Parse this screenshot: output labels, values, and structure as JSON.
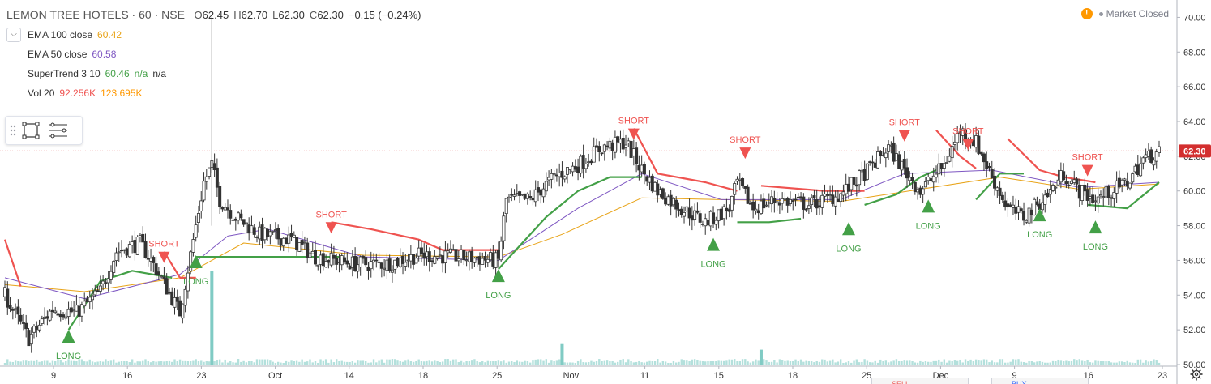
{
  "header": {
    "symbol": "LEMON TREE HOTELS · 60 · NSE",
    "ohlc": [
      {
        "k": "O",
        "v": "62.45"
      },
      {
        "k": "H",
        "v": "62.70"
      },
      {
        "k": "L",
        "v": "62.30"
      },
      {
        "k": "C",
        "v": "62.30"
      },
      {
        "k": "",
        "v": "−0.15 (−0.24%)"
      }
    ]
  },
  "indicators": [
    {
      "name": "EMA 100 close",
      "values": [
        "60.42"
      ],
      "colors": [
        "#e8a317"
      ]
    },
    {
      "name": "EMA 50 close",
      "values": [
        "60.58"
      ],
      "colors": [
        "#7e57c2"
      ]
    },
    {
      "name": "SuperTrend 3 10",
      "values": [
        "60.46",
        "n/a",
        "n/a"
      ],
      "colors": [
        "#43a047",
        "#43a047",
        "#333333"
      ]
    },
    {
      "name": "Vol 20",
      "values": [
        "92.256K",
        "123.695K"
      ],
      "colors": [
        "#ef5350",
        "#ff9800"
      ]
    }
  ],
  "status": {
    "warn_glyph": "!",
    "market": "Market Closed"
  },
  "colors": {
    "up": "#26a69a",
    "down": "#ef5350",
    "candle": "#333333",
    "ema100": "#e8a317",
    "ema50": "#7e57c2",
    "supertrend_up": "#43a047",
    "supertrend_down": "#ef5350",
    "last_price_line": "#d32f2f",
    "volume": "#80cbc4"
  },
  "chart_data": {
    "type": "candlestick",
    "title": "LEMON TREE HOTELS · 60 · NSE",
    "y_axis": {
      "range": [
        50,
        71
      ],
      "ticks": [
        "50.00",
        "52.00",
        "54.00",
        "56.00",
        "58.00",
        "60.00",
        "62.00",
        "64.00",
        "66.00",
        "68.00",
        "70.00"
      ],
      "position": "right"
    },
    "x_axis": {
      "ticks": [
        "9",
        "16",
        "23",
        "Oct",
        "14",
        "18",
        "25",
        "Nov",
        "11",
        "15",
        "18",
        "25",
        "Dec",
        "9",
        "16",
        "23"
      ]
    },
    "last_price": {
      "value": 62.3,
      "label": "62.30"
    },
    "price_path": [
      [
        0,
        54.0
      ],
      [
        3,
        51.5
      ],
      [
        6,
        53.2
      ],
      [
        9,
        53.0
      ],
      [
        12,
        54.2
      ],
      [
        14,
        56.5
      ],
      [
        17,
        57.0
      ],
      [
        19,
        55.5
      ],
      [
        22,
        53.0
      ],
      [
        25,
        60.5
      ],
      [
        26,
        61.5
      ],
      [
        27,
        59.5
      ],
      [
        29,
        58.5
      ],
      [
        32,
        57.5
      ],
      [
        36,
        57.2
      ],
      [
        39,
        56.2
      ],
      [
        44,
        55.8
      ],
      [
        48,
        55.8
      ],
      [
        52,
        56.3
      ],
      [
        57,
        56.2
      ],
      [
        62,
        56.0
      ],
      [
        63,
        59.5
      ],
      [
        66,
        59.5
      ],
      [
        69,
        60.8
      ],
      [
        72,
        61.5
      ],
      [
        75,
        62.5
      ],
      [
        78,
        62.8
      ],
      [
        80,
        61.2
      ],
      [
        82,
        60.0
      ],
      [
        85,
        59.0
      ],
      [
        88,
        58.2
      ],
      [
        91,
        59.0
      ],
      [
        92,
        60.5
      ],
      [
        94,
        59.0
      ],
      [
        97,
        59.5
      ],
      [
        101,
        59.2
      ],
      [
        105,
        59.8
      ],
      [
        108,
        61.0
      ],
      [
        111,
        62.5
      ],
      [
        113,
        61.2
      ],
      [
        115,
        60.0
      ],
      [
        118,
        61.5
      ],
      [
        120,
        63.5
      ],
      [
        122,
        62.8
      ],
      [
        124,
        60.8
      ],
      [
        126,
        59.0
      ],
      [
        128,
        58.5
      ],
      [
        131,
        59.8
      ],
      [
        133,
        61.0
      ],
      [
        135,
        60.0
      ],
      [
        137,
        59.5
      ],
      [
        139,
        60.0
      ],
      [
        141,
        60.5
      ],
      [
        143,
        61.8
      ],
      [
        145,
        62.3
      ]
    ],
    "series": [
      {
        "name": "EMA 100 close",
        "points": [
          [
            0,
            54.6
          ],
          [
            10,
            54.2
          ],
          [
            22,
            55.0
          ],
          [
            30,
            57.0
          ],
          [
            45,
            56.3
          ],
          [
            62,
            56.2
          ],
          [
            70,
            57.5
          ],
          [
            80,
            59.6
          ],
          [
            90,
            59.5
          ],
          [
            105,
            59.4
          ],
          [
            115,
            60.1
          ],
          [
            125,
            60.8
          ],
          [
            135,
            60.1
          ],
          [
            145,
            60.4
          ]
        ]
      },
      {
        "name": "EMA 50 close",
        "points": [
          [
            0,
            55.0
          ],
          [
            10,
            53.8
          ],
          [
            22,
            55.2
          ],
          [
            28,
            57.4
          ],
          [
            33,
            57.8
          ],
          [
            45,
            56.2
          ],
          [
            62,
            56.0
          ],
          [
            72,
            59.0
          ],
          [
            80,
            61.0
          ],
          [
            90,
            59.5
          ],
          [
            105,
            59.5
          ],
          [
            113,
            61.0
          ],
          [
            124,
            61.2
          ],
          [
            135,
            60.2
          ],
          [
            145,
            60.5
          ]
        ]
      },
      {
        "name": "SuperTrend 3 10",
        "segments": [
          {
            "trend": "down",
            "points": [
              [
                0,
                57.2
              ],
              [
                2,
                54.5
              ]
            ]
          },
          {
            "trend": "up",
            "points": [
              [
                8,
                52.0
              ],
              [
                12,
                54.8
              ],
              [
                16,
                55.4
              ],
              [
                21,
                55.0
              ]
            ]
          },
          {
            "trend": "down",
            "points": [
              [
                20,
                56.5
              ],
              [
                22,
                55.0
              ],
              [
                24,
                55.0
              ]
            ]
          },
          {
            "trend": "up",
            "points": [
              [
                24,
                56.2
              ],
              [
                35,
                56.2
              ],
              [
                42,
                56.2
              ]
            ]
          },
          {
            "trend": "down",
            "points": [
              [
                41,
                58.2
              ],
              [
                46,
                57.8
              ],
              [
                52,
                57.2
              ],
              [
                55,
                56.6
              ],
              [
                62,
                56.6
              ]
            ]
          },
          {
            "trend": "up",
            "points": [
              [
                62,
                55.5
              ],
              [
                64,
                56.5
              ],
              [
                68,
                58.5
              ],
              [
                72,
                60.0
              ],
              [
                76,
                60.8
              ],
              [
                80,
                60.8
              ]
            ]
          },
          {
            "trend": "down",
            "points": [
              [
                79,
                63.6
              ],
              [
                82,
                61.0
              ],
              [
                88,
                60.5
              ],
              [
                92,
                60.0
              ]
            ]
          },
          {
            "trend": "up",
            "points": [
              [
                92,
                58.2
              ],
              [
                96,
                58.2
              ],
              [
                100,
                58.4
              ]
            ]
          },
          {
            "trend": "down",
            "points": [
              [
                95,
                60.3
              ],
              [
                103,
                60.0
              ],
              [
                108,
                60.0
              ]
            ]
          },
          {
            "trend": "up",
            "points": [
              [
                108,
                59.2
              ],
              [
                112,
                59.8
              ],
              [
                115,
                60.8
              ],
              [
                117,
                61.2
              ]
            ]
          },
          {
            "trend": "down",
            "points": [
              [
                117,
                63.5
              ],
              [
                120,
                62.0
              ],
              [
                122,
                61.3
              ]
            ]
          },
          {
            "trend": "up",
            "points": [
              [
                122,
                59.5
              ],
              [
                125,
                61.0
              ],
              [
                128,
                61.0
              ]
            ]
          },
          {
            "trend": "down",
            "points": [
              [
                126,
                63.0
              ],
              [
                130,
                61.2
              ],
              [
                133,
                60.8
              ],
              [
                137,
                60.5
              ]
            ]
          },
          {
            "trend": "up",
            "points": [
              [
                136,
                59.2
              ],
              [
                141,
                59.0
              ],
              [
                145,
                60.5
              ]
            ]
          }
        ]
      }
    ],
    "signals": [
      {
        "type": "LONG",
        "x": 8,
        "price": 52.0
      },
      {
        "type": "SHORT",
        "x": 20,
        "price": 56.5
      },
      {
        "type": "LONG",
        "x": 24,
        "price": 56.3
      },
      {
        "type": "SHORT",
        "x": 41,
        "price": 58.2
      },
      {
        "type": "LONG",
        "x": 62,
        "price": 55.5
      },
      {
        "type": "SHORT",
        "x": 79,
        "price": 63.6
      },
      {
        "type": "LONG",
        "x": 89,
        "price": 57.3
      },
      {
        "type": "SHORT",
        "x": 93,
        "price": 62.5
      },
      {
        "type": "LONG",
        "x": 106,
        "price": 58.2
      },
      {
        "type": "SHORT",
        "x": 113,
        "price": 63.5
      },
      {
        "type": "LONG",
        "x": 116,
        "price": 59.5
      },
      {
        "type": "SHORT",
        "x": 121,
        "price": 63.0
      },
      {
        "type": "LONG",
        "x": 130,
        "price": 59.0
      },
      {
        "type": "SHORT",
        "x": 136,
        "price": 61.5
      },
      {
        "type": "LONG",
        "x": 137,
        "price": 58.3
      }
    ],
    "volume_spikes": [
      {
        "x": 26,
        "value": 1.0
      },
      {
        "x": 70,
        "value": 0.22
      },
      {
        "x": 95,
        "value": 0.16
      }
    ]
  },
  "bottom_tabs": [
    "SELL",
    "BUY"
  ]
}
